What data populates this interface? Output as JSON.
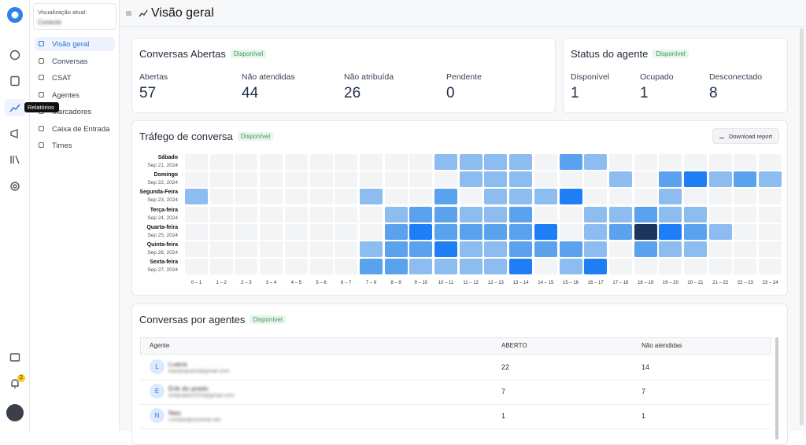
{
  "sidebar": {
    "current_view_label": "Visualização atual:",
    "current_view": "Conecte",
    "tooltip": "Relatórios",
    "notification_count": "2",
    "items": [
      "Visão geral",
      "Conversas",
      "CSAT",
      "Agentes",
      "Marcadores",
      "Caixa de Entrada",
      "Times"
    ]
  },
  "header": {
    "title": "Visão geral"
  },
  "open_conversations": {
    "title": "Conversas Abertas",
    "badge": "Disponível",
    "metrics": [
      {
        "label": "Abertas",
        "value": "57"
      },
      {
        "label": "Não atendidas",
        "value": "44"
      },
      {
        "label": "Não atribuída",
        "value": "26"
      },
      {
        "label": "Pendente",
        "value": "0"
      }
    ]
  },
  "agent_status": {
    "title": "Status do agente",
    "badge": "Disponível",
    "metrics": [
      {
        "label": "Disponível",
        "value": "1"
      },
      {
        "label": "Ocupado",
        "value": "1"
      },
      {
        "label": "Desconectado",
        "value": "8"
      }
    ]
  },
  "traffic": {
    "title": "Tráfego de conversa",
    "badge": "Disponível",
    "button": "Download report",
    "colors": [
      "#f3f4f6",
      "#8dbdf0",
      "#5aa1ee",
      "#1d7ef5",
      "#1b365d"
    ],
    "hours": [
      "0 – 1",
      "1 – 2",
      "2 – 3",
      "3 – 4",
      "4 – 5",
      "5 – 6",
      "6 – 7",
      "7 – 8",
      "8 – 9",
      "9 – 10",
      "10 – 11",
      "11 – 12",
      "12 – 13",
      "13 – 14",
      "14 – 15",
      "15 – 16",
      "16 – 17",
      "17 – 18",
      "18 – 19",
      "19 – 20",
      "20 – 21",
      "21 – 22",
      "22 – 23",
      "23 – 24"
    ],
    "rows": [
      {
        "day": "Sábado",
        "date": "Sep 21, 2024",
        "values": [
          0,
          0,
          0,
          0,
          0,
          0,
          0,
          0,
          0,
          0,
          1,
          1,
          1,
          1,
          0,
          2,
          1,
          0,
          0,
          0,
          0,
          0,
          0,
          0
        ]
      },
      {
        "day": "Domingo",
        "date": "Sep 22, 2024",
        "values": [
          0,
          0,
          0,
          0,
          0,
          0,
          0,
          0,
          0,
          0,
          0,
          1,
          1,
          1,
          0,
          0,
          0,
          1,
          0,
          2,
          3,
          1,
          2,
          1
        ]
      },
      {
        "day": "Segunda-Feira",
        "date": "Sep 23, 2024",
        "values": [
          1,
          0,
          0,
          0,
          0,
          0,
          0,
          1,
          0,
          0,
          2,
          0,
          1,
          1,
          1,
          3,
          0,
          0,
          0,
          1,
          0,
          0,
          0,
          0
        ]
      },
      {
        "day": "Terça-feira",
        "date": "Sep 24, 2024",
        "values": [
          0,
          0,
          0,
          0,
          0,
          0,
          0,
          0,
          1,
          2,
          2,
          1,
          1,
          2,
          0,
          0,
          1,
          1,
          2,
          1,
          1,
          0,
          0,
          0
        ]
      },
      {
        "day": "Quarta-feira",
        "date": "Sep 25, 2024",
        "values": [
          0,
          0,
          0,
          0,
          0,
          0,
          0,
          0,
          2,
          3,
          2,
          2,
          2,
          2,
          3,
          0,
          1,
          2,
          4,
          3,
          2,
          1,
          0,
          0
        ]
      },
      {
        "day": "Quinta-feira",
        "date": "Sep 26, 2024",
        "values": [
          0,
          0,
          0,
          0,
          0,
          0,
          0,
          1,
          2,
          2,
          3,
          1,
          1,
          2,
          2,
          2,
          1,
          0,
          2,
          1,
          1,
          0,
          0,
          0
        ]
      },
      {
        "day": "Sexta-feira",
        "date": "Sep 27, 2024",
        "values": [
          0,
          0,
          0,
          0,
          0,
          0,
          0,
          2,
          2,
          1,
          1,
          1,
          1,
          3,
          0,
          1,
          3,
          0,
          0,
          0,
          0,
          0,
          0,
          0
        ]
      }
    ]
  },
  "agents": {
    "title": "Conversas por agentes",
    "badge": "Disponível",
    "columns": [
      "Agente",
      "ABERTO",
      "Não atendidas"
    ],
    "rows": [
      {
        "initial": "L",
        "name": "Luana",
        "email": "luanasquero@gmail.com",
        "open": "22",
        "unattended": "14"
      },
      {
        "initial": "E",
        "name": "Erik do prado",
        "email": "erikprado2024@gmail.com",
        "open": "7",
        "unattended": "7"
      },
      {
        "initial": "N",
        "name": "Nao",
        "email": "contato@conecte.net",
        "open": "1",
        "unattended": "1"
      }
    ]
  }
}
